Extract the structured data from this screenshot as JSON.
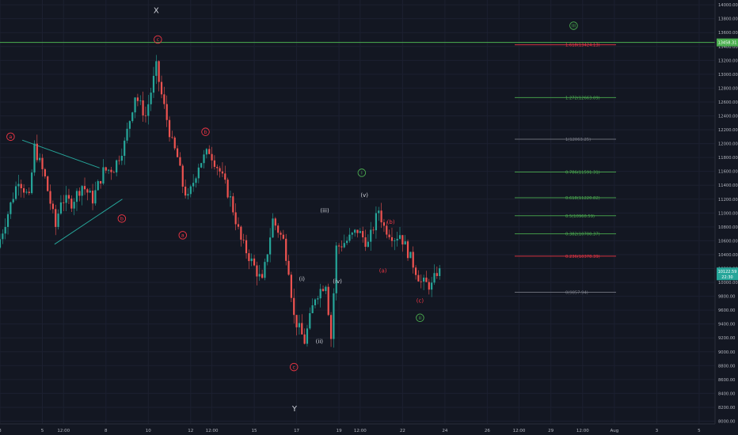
{
  "chart_data": {
    "type": "candlestick",
    "y_axis": {
      "ticks": [
        8000,
        8200,
        8400,
        8600,
        8800,
        9000,
        9200,
        9400,
        9600,
        9800,
        10000,
        10200,
        10400,
        10600,
        10800,
        11000,
        11200,
        11400,
        11600,
        11800,
        12000,
        12200,
        12400,
        12600,
        12800,
        13000,
        13200,
        13400,
        13600,
        13800,
        14000
      ],
      "labels": [
        "8000.00",
        "8200.00",
        "8400.00",
        "8600.00",
        "8800.00",
        "9000.00",
        "9200.00",
        "9400.00",
        "9600.00",
        "9800.00",
        "10000.00",
        "10200.00",
        "10400.00",
        "10600.00",
        "10800.00",
        "11000.00",
        "11200.00",
        "11400.00",
        "11600.00",
        "11800.00",
        "12000.00",
        "12200.00",
        "12400.00",
        "12600.00",
        "12800.00",
        "13000.00",
        "13200.00",
        "13400.00",
        "13600.00",
        "13800.00",
        "14000.00"
      ],
      "range": [
        7960,
        14070
      ]
    },
    "x_axis": {
      "ticks": [
        {
          "label": "3",
          "i": 0
        },
        {
          "label": "5",
          "i": 8
        },
        {
          "label": "12:00",
          "i": 12
        },
        {
          "label": "8",
          "i": 20
        },
        {
          "label": "10",
          "i": 28
        },
        {
          "label": "12",
          "i": 36
        },
        {
          "label": "12:00",
          "i": 40
        },
        {
          "label": "15",
          "i": 48
        },
        {
          "label": "17",
          "i": 56
        },
        {
          "label": "19",
          "i": 64
        },
        {
          "label": "12:00",
          "i": 68
        },
        {
          "label": "22",
          "i": 76
        },
        {
          "label": "24",
          "i": 84
        },
        {
          "label": "26",
          "i": 92
        },
        {
          "label": "12:00",
          "i": 98
        },
        {
          "label": "29",
          "i": 104
        },
        {
          "label": "12:00",
          "i": 110
        },
        {
          "label": "Aug",
          "i": 116
        },
        {
          "label": "3",
          "i": 124
        },
        {
          "label": "5",
          "i": 132
        }
      ],
      "range": [
        0,
        135
      ]
    },
    "price_path": [
      [
        0,
        10500
      ],
      [
        2,
        11000
      ],
      [
        4,
        11500
      ],
      [
        6,
        11200
      ],
      [
        7,
        11950
      ],
      [
        9,
        11500
      ],
      [
        11,
        10800
      ],
      [
        12,
        11200
      ],
      [
        14,
        11150
      ],
      [
        16,
        11400
      ],
      [
        18,
        11200
      ],
      [
        20,
        11600
      ],
      [
        22,
        11650
      ],
      [
        24,
        12000
      ],
      [
        26,
        12700
      ],
      [
        28,
        12400
      ],
      [
        30,
        13100
      ],
      [
        31,
        12700
      ],
      [
        33,
        12000
      ],
      [
        34,
        11800
      ],
      [
        35,
        11400
      ],
      [
        36,
        11200
      ],
      [
        38,
        11700
      ],
      [
        40,
        11900
      ],
      [
        42,
        11600
      ],
      [
        44,
        11200
      ],
      [
        46,
        10600
      ],
      [
        48,
        10300
      ],
      [
        50,
        10000
      ],
      [
        52,
        10900
      ],
      [
        54,
        10600
      ],
      [
        55,
        10200
      ],
      [
        56,
        9500
      ],
      [
        58,
        9150
      ],
      [
        60,
        9800
      ],
      [
        62,
        10000
      ],
      [
        63,
        9200
      ],
      [
        64,
        10500
      ],
      [
        66,
        10600
      ],
      [
        68,
        10750
      ],
      [
        70,
        10550
      ],
      [
        72,
        11050
      ],
      [
        73,
        10800
      ],
      [
        75,
        10650
      ],
      [
        76,
        10700
      ],
      [
        78,
        10350
      ],
      [
        80,
        10000
      ],
      [
        82,
        9950
      ],
      [
        83,
        10150
      ]
    ],
    "current_price": {
      "value": 10122.59,
      "label": "10122.59",
      "sublabel": "22:30"
    },
    "resistance": {
      "value": 13458.31,
      "label": "13458.31"
    },
    "fib_levels": [
      {
        "label": "1.618(13424.13)",
        "value": 13424.13,
        "color": "#f23645"
      },
      {
        "label": "1.272(12663.09)",
        "value": 12663.09,
        "color": "#4caf50"
      },
      {
        "label": "1(12063.25)",
        "value": 12063.25,
        "color": "#787b86"
      },
      {
        "label": "0.786(11591.31)",
        "value": 11591.31,
        "color": "#4caf50"
      },
      {
        "label": "0.618(11220.82)",
        "value": 11220.82,
        "color": "#4caf50"
      },
      {
        "label": "0.5(10960.59)",
        "value": 10960.59,
        "color": "#4caf50"
      },
      {
        "label": "0.382(10700.37)",
        "value": 10700.37,
        "color": "#4caf50"
      },
      {
        "label": "0.236(10378.39)",
        "value": 10378.39,
        "color": "#f23645"
      },
      {
        "label": "0(9857.94)",
        "value": 9857.94,
        "color": "#787b86"
      }
    ],
    "wave_labels": [
      {
        "text": "X",
        "i": 29.5,
        "v": 13930,
        "style": "plain"
      },
      {
        "text": "c",
        "i": 29.8,
        "v": 13500,
        "style": "red-circle"
      },
      {
        "text": "a",
        "i": 2,
        "v": 12100,
        "style": "red-circle"
      },
      {
        "text": "b",
        "i": 23,
        "v": 10920,
        "style": "red-circle"
      },
      {
        "text": "b",
        "i": 38.8,
        "v": 12170,
        "style": "red-circle"
      },
      {
        "text": "a",
        "i": 34.5,
        "v": 10680,
        "style": "red-circle"
      },
      {
        "text": "c",
        "i": 55.5,
        "v": 8780,
        "style": "red-circle"
      },
      {
        "text": "Y",
        "i": 55.6,
        "v": 8190,
        "style": "plain"
      },
      {
        "text": "i",
        "i": 68.3,
        "v": 11580,
        "style": "green-circle"
      },
      {
        "text": "(v)",
        "i": 68.8,
        "v": 11260,
        "style": "plain"
      },
      {
        "text": "(iii)",
        "i": 61.3,
        "v": 11040,
        "style": "plain"
      },
      {
        "text": "(i)",
        "i": 57,
        "v": 10050,
        "style": "plain"
      },
      {
        "text": "(iv)",
        "i": 63.7,
        "v": 10020,
        "style": "plain"
      },
      {
        "text": "(ii)",
        "i": 60.3,
        "v": 9150,
        "style": "plain"
      },
      {
        "text": "(b)",
        "i": 73.8,
        "v": 10870,
        "style": "red-text"
      },
      {
        "text": "(a)",
        "i": 72.3,
        "v": 10170,
        "style": "red-text"
      },
      {
        "text": "(c)",
        "i": 79.3,
        "v": 9740,
        "style": "red-text"
      },
      {
        "text": "ii",
        "i": 79.3,
        "v": 9490,
        "style": "green-circle"
      },
      {
        "text": "iii",
        "i": 108.3,
        "v": 13700,
        "style": "green-circle"
      }
    ]
  }
}
